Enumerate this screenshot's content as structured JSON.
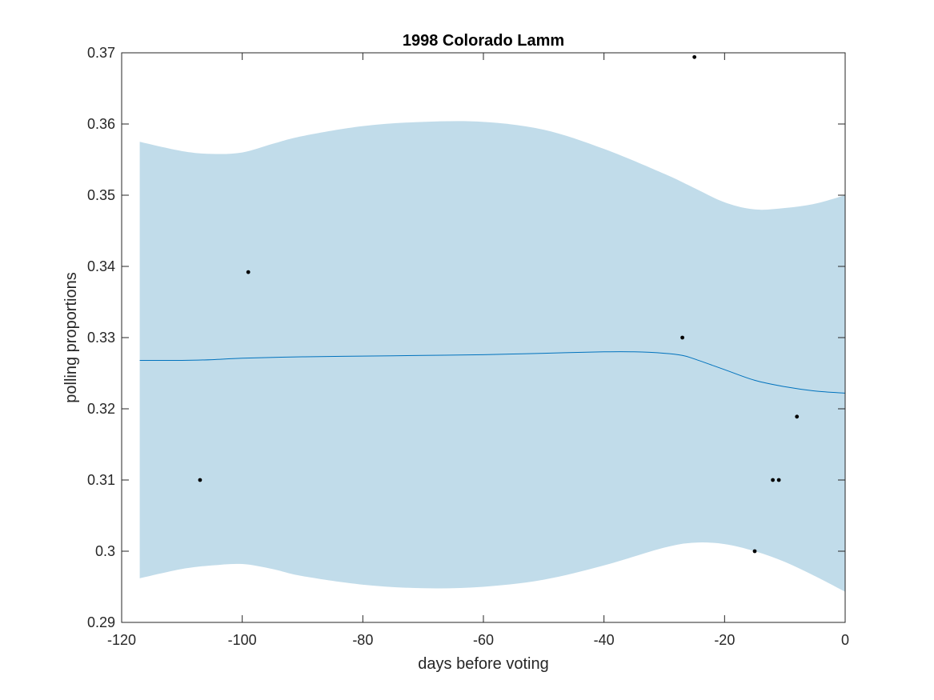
{
  "chart_data": {
    "type": "line",
    "title": "1998 Colorado Lamm",
    "xlabel": "days before voting",
    "ylabel": "polling proportions",
    "xlim": [
      -120,
      0
    ],
    "ylim": [
      0.29,
      0.37
    ],
    "xticks": [
      -120,
      -100,
      -80,
      -60,
      -40,
      -20,
      0
    ],
    "yticks": [
      0.29,
      0.3,
      0.31,
      0.32,
      0.33,
      0.34,
      0.35,
      0.36,
      0.37
    ],
    "xtick_labels": [
      "-120",
      "-100",
      "-80",
      "-60",
      "-40",
      "-20",
      "0"
    ],
    "ytick_labels": [
      "0.29",
      "0.3",
      "0.31",
      "0.32",
      "0.33",
      "0.34",
      "0.35",
      "0.36",
      "0.37"
    ],
    "grid": false,
    "colors": {
      "band": "#c1dcea",
      "line": "#0072bd",
      "points": "#000000",
      "axes": "#262626"
    },
    "band": {
      "x": [
        -117,
        -110,
        -105,
        -100,
        -95,
        -90,
        -80,
        -70,
        -60,
        -50,
        -40,
        -30,
        -25,
        -20,
        -15,
        -10,
        -5,
        0
      ],
      "upper": [
        0.3575,
        0.3562,
        0.3558,
        0.356,
        0.3572,
        0.3583,
        0.3597,
        0.3603,
        0.3603,
        0.3592,
        0.3565,
        0.353,
        0.351,
        0.349,
        0.348,
        0.3482,
        0.3488,
        0.35
      ],
      "lower": [
        0.2962,
        0.2975,
        0.298,
        0.2982,
        0.2975,
        0.2965,
        0.2953,
        0.2948,
        0.295,
        0.296,
        0.298,
        0.3005,
        0.3012,
        0.301,
        0.3,
        0.2985,
        0.2965,
        0.2943
      ]
    },
    "series": [
      {
        "x": [
          -117,
          -110,
          -105,
          -100,
          -90,
          -80,
          -70,
          -60,
          -50,
          -40,
          -35,
          -30,
          -27,
          -25,
          -20,
          -15,
          -10,
          -5,
          0
        ],
        "values": [
          0.3268,
          0.3268,
          0.3269,
          0.3271,
          0.3273,
          0.3274,
          0.3275,
          0.3276,
          0.3278,
          0.328,
          0.328,
          0.3278,
          0.3275,
          0.327,
          0.3255,
          0.324,
          0.3231,
          0.3225,
          0.3222
        ]
      }
    ],
    "points": [
      {
        "x": -107,
        "y": 0.31
      },
      {
        "x": -99,
        "y": 0.3392
      },
      {
        "x": -27,
        "y": 0.33
      },
      {
        "x": -25,
        "y": 0.3694
      },
      {
        "x": -15,
        "y": 0.3
      },
      {
        "x": -12,
        "y": 0.31
      },
      {
        "x": -11,
        "y": 0.31
      },
      {
        "x": -8,
        "y": 0.3189
      }
    ]
  }
}
